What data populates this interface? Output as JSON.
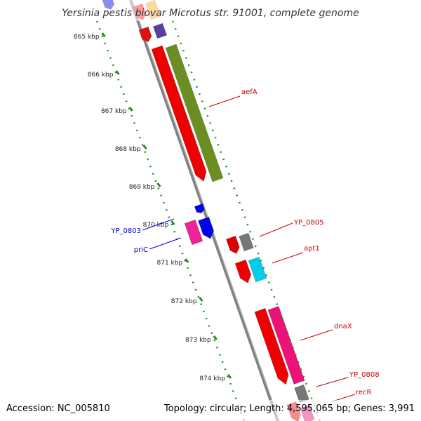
{
  "title": "Yersinia pestis biovar Microtus str. 91001, complete genome",
  "footer": {
    "accession": "Accession: NC_005810",
    "summary": "Topology: circular; Length: 4,595,065 bp; Genes: 3,991"
  },
  "colors": {
    "backbone": "#808080",
    "tick_ring": "#228b22",
    "label_forward": "#cc0000",
    "label_reverse": "#0000cc"
  },
  "kbp_ticks": [
    "865 kbp",
    "866 kbp",
    "867 kbp",
    "868 kbp",
    "869 kbp",
    "870 kbp",
    "871 kbp",
    "872 kbp",
    "873 kbp",
    "874 kbp"
  ],
  "genes": [
    {
      "id": "aefA",
      "label": "aefA",
      "strand": "forward",
      "color": "#cc0000"
    },
    {
      "id": "YP_0805",
      "label": "YP_0805",
      "strand": "forward",
      "color": "#cc0000"
    },
    {
      "id": "apt1",
      "label": "apt1",
      "strand": "forward",
      "color": "#cc0000"
    },
    {
      "id": "dnaX",
      "label": "dnaX",
      "strand": "forward",
      "color": "#cc0000"
    },
    {
      "id": "YP_0808",
      "label": "YP_0808",
      "strand": "forward",
      "color": "#cc0000"
    },
    {
      "id": "recR",
      "label": "recR",
      "strand": "forward",
      "color": "#cc0000"
    },
    {
      "id": "YP_0803",
      "label": "YP_0803",
      "strand": "reverse",
      "color": "#0000cc"
    },
    {
      "id": "priC",
      "label": "priC",
      "strand": "reverse",
      "color": "#0000cc"
    }
  ]
}
